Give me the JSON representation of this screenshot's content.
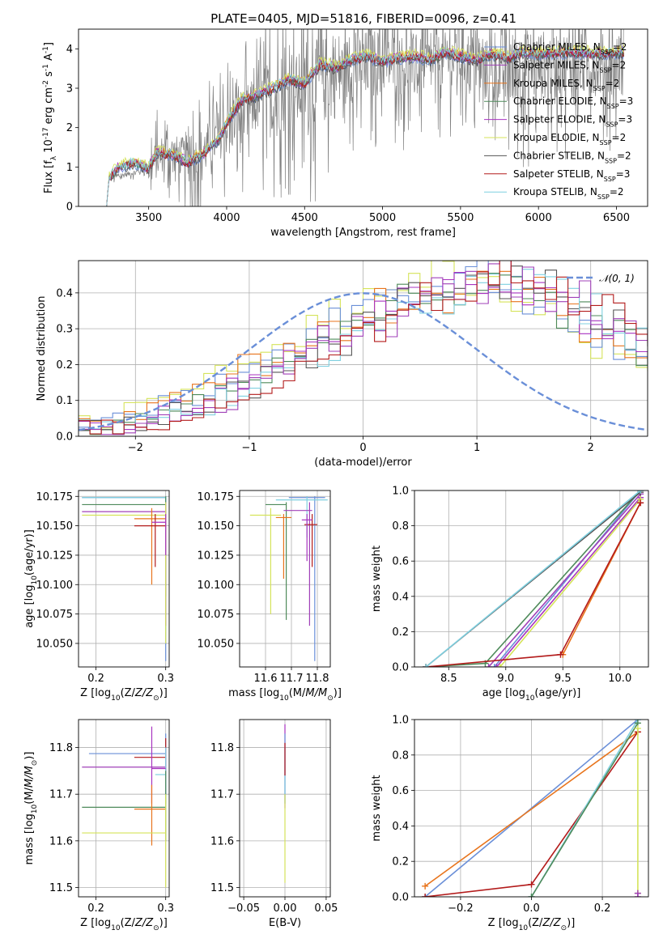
{
  "palette": {
    "Chabrier MILES": "#6a8fd8",
    "Salpeter MILES": "#a040b8",
    "Kroupa MILES": "#e8741c",
    "Chabrier ELODIE": "#4e8a5a",
    "Salpeter ELODIE": "#a833c0",
    "Kroupa ELODIE": "#d5e35a",
    "Chabrier STELIB": "#555555",
    "Salpeter STELIB": "#b31b1b",
    "Kroupa STELIB": "#7fd0e0",
    "data": "#808080",
    "normal": "#6a8fd8"
  },
  "chart_data": [
    {
      "id": "spectrum",
      "type": "line",
      "title": "PLATE=0405, MJD=51816, FIBERID=0096, z=0.41",
      "xlabel": "wavelength [Angstrom, rest frame]",
      "ylabel": "Flux [f_λ 10^-17 erg cm^-2 s^-1 A^-1]",
      "xlim": [
        3050,
        6700
      ],
      "ylim": [
        0,
        4.5
      ],
      "xticks": [
        3500,
        4000,
        4500,
        5000,
        5500,
        6000,
        6500
      ],
      "yticks": [
        0,
        1,
        2,
        3,
        4
      ],
      "grid": false,
      "legend": "top-right",
      "legend_entries": [
        {
          "name": "Chabrier MILES",
          "nssp": "2"
        },
        {
          "name": "Salpeter MILES",
          "nssp": "2"
        },
        {
          "name": "Kroupa MILES",
          "nssp": "2"
        },
        {
          "name": "Chabrier ELODIE",
          "nssp": "3"
        },
        {
          "name": "Salpeter ELODIE",
          "nssp": "3"
        },
        {
          "name": "Kroupa ELODIE",
          "nssp": "2"
        },
        {
          "name": "Chabrier STELIB",
          "nssp": "2"
        },
        {
          "name": "Salpeter STELIB",
          "nssp": "3"
        },
        {
          "name": "Kroupa STELIB",
          "nssp": "2"
        }
      ],
      "model_anchor_x": [
        3230,
        3245,
        3300,
        3400,
        3500,
        3550,
        3650,
        3750,
        3850,
        3950,
        4000,
        4100,
        4200,
        4300,
        4400,
        4500,
        4600,
        4700,
        4800,
        4900,
        5000,
        5100,
        5200,
        5300,
        5400,
        5500,
        5600,
        5700,
        5800,
        5900,
        6000,
        6200,
        6400,
        6550
      ],
      "model_anchor_y": [
        0.0,
        0.7,
        0.95,
        1.1,
        0.95,
        1.35,
        1.3,
        1.1,
        1.3,
        1.7,
        2.1,
        2.7,
        2.8,
        3.0,
        3.2,
        3.1,
        3.6,
        3.5,
        3.7,
        3.8,
        3.65,
        3.75,
        3.8,
        3.7,
        3.9,
        3.8,
        3.7,
        3.85,
        3.75,
        3.9,
        3.85,
        3.9,
        3.85,
        3.9
      ],
      "data_anchor_x": [
        3230,
        3245,
        3500,
        3600,
        3800,
        3950,
        4000,
        4200,
        4500,
        4800,
        5000,
        5200,
        5500,
        5700,
        6000,
        6550
      ],
      "data_anchor_y": [
        0.0,
        0.7,
        0.95,
        1.4,
        1.2,
        1.8,
        2.0,
        2.6,
        3.0,
        3.5,
        3.7,
        3.5,
        3.8,
        3.4,
        3.6,
        3.6
      ],
      "data_noise": [
        0.1,
        0.6,
        0.8,
        0.9,
        1.2,
        1.4,
        1.1,
        1.0,
        0.9,
        1.0,
        1.2,
        1.1,
        1.0,
        1.0
      ]
    },
    {
      "id": "residuals",
      "type": "histogram",
      "xlabel": "(data-model)/error",
      "ylabel": "Normed distribution",
      "xlim": [
        -2.5,
        2.5
      ],
      "ylim": [
        0,
        0.49
      ],
      "xticks": [
        -2,
        -1,
        0,
        1,
        2
      ],
      "yticks": [
        0.0,
        0.1,
        0.2,
        0.3,
        0.4
      ],
      "grid": true,
      "legend": "top-right",
      "normal_label": "𝒩(0, 1)",
      "bin_start": -2.5,
      "bin_width": 0.1,
      "envelope": [
        0.02,
        0.025,
        0.03,
        0.035,
        0.045,
        0.055,
        0.065,
        0.075,
        0.085,
        0.1,
        0.11,
        0.12,
        0.135,
        0.15,
        0.165,
        0.18,
        0.2,
        0.215,
        0.23,
        0.25,
        0.265,
        0.28,
        0.3,
        0.315,
        0.33,
        0.345,
        0.36,
        0.375,
        0.385,
        0.395,
        0.4,
        0.41,
        0.42,
        0.43,
        0.435,
        0.44,
        0.435,
        0.43,
        0.42,
        0.405,
        0.39,
        0.375,
        0.36,
        0.34,
        0.325,
        0.305,
        0.285,
        0.265,
        0.245,
        0.225,
        0.205,
        0.185,
        0.165,
        0.15,
        0.135,
        0.12,
        0.1,
        0.09,
        0.08,
        0.07,
        0.06,
        0.055,
        0.05,
        0.045,
        0.04,
        0.035,
        0.03,
        0.028,
        0.025,
        0.022,
        0.02
      ]
    },
    {
      "id": "age-vs-z",
      "type": "errorbar",
      "xlabel": "Z [log10(Z/Z⊙)]",
      "ylabel": "age  [log10(age/yr)]",
      "xlim": [
        0.175,
        0.305
      ],
      "ylim": [
        10.03,
        10.18
      ],
      "xticks": [
        0.2,
        0.3
      ],
      "yticks": [
        10.05,
        10.075,
        10.1,
        10.125,
        10.15,
        10.175
      ],
      "grid": true,
      "points": [
        {
          "s": "Chabrier MILES",
          "x": 0.3,
          "y": 10.174,
          "xl": 0.18,
          "xh": 0.3,
          "yl": 10.035,
          "yh": 10.175
        },
        {
          "s": "Kroupa STELIB",
          "x": 0.3,
          "y": 10.174,
          "xl": 0.18,
          "xh": 0.3,
          "yl": 10.06,
          "yh": 10.175
        },
        {
          "s": "Chabrier ELODIE",
          "x": 0.3,
          "y": 10.168,
          "xl": 0.18,
          "xh": 0.3,
          "yl": 10.09,
          "yh": 10.175
        },
        {
          "s": "Salpeter MILES",
          "x": 0.3,
          "y": 10.162,
          "xl": 0.18,
          "xh": 0.3,
          "yl": 10.065,
          "yh": 10.17
        },
        {
          "s": "Kroupa ELODIE",
          "x": 0.3,
          "y": 10.159,
          "xl": 0.18,
          "xh": 0.3,
          "yl": 10.05,
          "yh": 10.17
        },
        {
          "s": "Kroupa MILES",
          "x": 0.28,
          "y": 10.156,
          "xl": 0.255,
          "xh": 0.3,
          "yl": 10.1,
          "yh": 10.165
        },
        {
          "s": "Salpeter STELIB",
          "x": 0.285,
          "y": 10.15,
          "xl": 0.255,
          "xh": 0.3,
          "yl": 10.115,
          "yh": 10.16
        },
        {
          "s": "Salpeter ELODIE",
          "x": 0.3,
          "y": 10.153,
          "xl": 0.28,
          "xh": 0.3,
          "yl": 10.125,
          "yh": 10.16
        }
      ]
    },
    {
      "id": "age-vs-mass",
      "type": "errorbar",
      "xlabel": "mass [log10(M/M⊙)]",
      "ylabel": "",
      "xlim": [
        11.5,
        11.85
      ],
      "ylim": [
        10.03,
        10.18
      ],
      "xticks": [
        11.6,
        11.7,
        11.8
      ],
      "yticks": [
        10.05,
        10.075,
        10.1,
        10.125,
        10.15,
        10.175
      ],
      "grid": true,
      "points": [
        {
          "s": "Chabrier MILES",
          "x": 11.79,
          "y": 10.174,
          "xl": 11.69,
          "xh": 11.83,
          "yl": 10.035,
          "yh": 10.175
        },
        {
          "s": "Kroupa STELIB",
          "x": 11.76,
          "y": 10.172,
          "xl": 11.64,
          "xh": 11.84,
          "yl": 10.14,
          "yh": 10.175
        },
        {
          "s": "Chabrier ELODIE",
          "x": 11.68,
          "y": 10.168,
          "xl": 11.6,
          "xh": 11.68,
          "yl": 10.07,
          "yh": 10.17
        },
        {
          "s": "Salpeter MILES",
          "x": 11.77,
          "y": 10.163,
          "xl": 11.67,
          "xh": 11.78,
          "yl": 10.065,
          "yh": 10.17
        },
        {
          "s": "Kroupa ELODIE",
          "x": 11.62,
          "y": 10.159,
          "xl": 11.54,
          "xh": 11.66,
          "yl": 10.075,
          "yh": 10.165
        },
        {
          "s": "Kroupa MILES",
          "x": 11.67,
          "y": 10.157,
          "xl": 11.64,
          "xh": 11.7,
          "yl": 10.105,
          "yh": 10.16
        },
        {
          "s": "Salpeter STELIB",
          "x": 11.78,
          "y": 10.151,
          "xl": 11.75,
          "xh": 11.8,
          "yl": 10.115,
          "yh": 10.16
        },
        {
          "s": "Salpeter ELODIE",
          "x": 11.76,
          "y": 10.155,
          "xl": 11.74,
          "xh": 11.78,
          "yl": 10.12,
          "yh": 10.16
        }
      ]
    },
    {
      "id": "mw-vs-age",
      "type": "line",
      "xlabel": "age  [log10(age/yr)]",
      "ylabel": "mass weight",
      "xlim": [
        8.2,
        10.25
      ],
      "ylim": [
        0,
        1
      ],
      "xticks": [
        8.5,
        9.0,
        9.5,
        10.0
      ],
      "yticks": [
        0.0,
        0.2,
        0.4,
        0.6,
        0.8,
        1.0
      ],
      "grid": true,
      "series": [
        {
          "s": "Chabrier MILES",
          "x": [
            8.9,
            10.18
          ],
          "y": [
            0.0,
            1.0
          ]
        },
        {
          "s": "Salpeter MILES",
          "x": [
            8.85,
            10.18
          ],
          "y": [
            0.0,
            0.98
          ]
        },
        {
          "s": "Kroupa MILES",
          "x": [
            9.5,
            10.18
          ],
          "y": [
            0.07,
            0.93
          ]
        },
        {
          "s": "Chabrier ELODIE",
          "x": [
            8.3,
            8.82,
            10.18
          ],
          "y": [
            0.0,
            0.02,
            1.0
          ]
        },
        {
          "s": "Salpeter ELODIE",
          "x": [
            8.92,
            10.18
          ],
          "y": [
            0.0,
            0.96
          ]
        },
        {
          "s": "Kroupa ELODIE",
          "x": [
            8.95,
            10.18
          ],
          "y": [
            0.0,
            0.95
          ]
        },
        {
          "s": "Chabrier STELIB",
          "x": [
            8.3,
            10.18
          ],
          "y": [
            0.0,
            0.99
          ]
        },
        {
          "s": "Salpeter STELIB",
          "x": [
            8.3,
            9.48,
            10.18
          ],
          "y": [
            0.0,
            0.07,
            0.93
          ]
        },
        {
          "s": "Kroupa STELIB",
          "x": [
            8.3,
            10.18
          ],
          "y": [
            0.0,
            1.0
          ]
        }
      ]
    },
    {
      "id": "mass-vs-z",
      "type": "errorbar",
      "xlabel": "Z [log10(Z/Z⊙)]",
      "ylabel": "mass [log10(M/M⊙)]",
      "xlim": [
        0.175,
        0.305
      ],
      "ylim": [
        11.48,
        11.86
      ],
      "xticks": [
        0.2,
        0.3
      ],
      "yticks": [
        11.5,
        11.6,
        11.7,
        11.8
      ],
      "grid": true,
      "points": [
        {
          "s": "Chabrier MILES",
          "x": 0.3,
          "y": 11.787,
          "xl": 0.19,
          "xh": 0.3,
          "yl": 11.68,
          "yh": 11.83
        },
        {
          "s": "Salpeter STELIB",
          "x": 0.3,
          "y": 11.779,
          "xl": 0.255,
          "xh": 0.3,
          "yl": 11.74,
          "yh": 11.82
        },
        {
          "s": "Salpeter MILES",
          "x": 0.3,
          "y": 11.758,
          "xl": 0.18,
          "xh": 0.3,
          "yl": 11.7,
          "yh": 11.8
        },
        {
          "s": "Kroupa STELIB",
          "x": 0.3,
          "y": 11.742,
          "xl": 0.285,
          "xh": 0.3,
          "yl": 11.68,
          "yh": 11.8
        },
        {
          "s": "Salpeter ELODIE",
          "x": 0.28,
          "y": 11.755,
          "xl": 0.28,
          "xh": 0.3,
          "yl": 11.68,
          "yh": 11.845
        },
        {
          "s": "Chabrier ELODIE",
          "x": 0.3,
          "y": 11.672,
          "xl": 0.18,
          "xh": 0.3,
          "yl": 11.6,
          "yh": 11.75
        },
        {
          "s": "Kroupa MILES",
          "x": 0.28,
          "y": 11.668,
          "xl": 0.255,
          "xh": 0.3,
          "yl": 11.59,
          "yh": 11.72
        },
        {
          "s": "Kroupa ELODIE",
          "x": 0.3,
          "y": 11.617,
          "xl": 0.18,
          "xh": 0.3,
          "yl": 11.5,
          "yh": 11.7
        }
      ]
    },
    {
      "id": "mass-vs-ebv",
      "type": "errorbar",
      "xlabel": "E(B-V)",
      "ylabel": "",
      "xlim": [
        -0.055,
        0.055
      ],
      "ylim": [
        11.48,
        11.86
      ],
      "xticks": [
        -0.05,
        0.0,
        0.05
      ],
      "tick_labels": [
        "−0.05",
        "0.00",
        "0.05"
      ],
      "yticks": [
        11.5,
        11.6,
        11.7,
        11.8
      ],
      "grid": true,
      "points": [
        {
          "s": "Salpeter ELODIE",
          "x": 0.0,
          "y": 11.76,
          "xl": 0.0,
          "xh": 0.0,
          "yl": 11.67,
          "yh": 11.85
        },
        {
          "s": "Chabrier MILES",
          "x": 0.0,
          "y": 11.79,
          "xl": 0.0,
          "xh": 0.0,
          "yl": 11.68,
          "yh": 11.83
        },
        {
          "s": "Kroupa STELIB",
          "x": 0.0,
          "y": 11.74,
          "xl": 0.0,
          "xh": 0.0,
          "yl": 11.68,
          "yh": 11.8
        },
        {
          "s": "Salpeter STELIB",
          "x": 0.0,
          "y": 11.78,
          "xl": 0.0,
          "xh": 0.0,
          "yl": 11.74,
          "yh": 11.81
        },
        {
          "s": "Kroupa ELODIE",
          "x": 0.0,
          "y": 11.62,
          "xl": 0.0,
          "xh": 0.0,
          "yl": 11.51,
          "yh": 11.7
        }
      ]
    },
    {
      "id": "mw-vs-z",
      "type": "line",
      "xlabel": "Z [log10(Z/Z⊙)]",
      "ylabel": "mass weight",
      "xlim": [
        -0.33,
        0.33
      ],
      "ylim": [
        0,
        1
      ],
      "xticks": [
        -0.2,
        0.0,
        0.2
      ],
      "tick_labels": [
        "−0.2",
        "0.0",
        "0.2"
      ],
      "yticks": [
        0.0,
        0.2,
        0.4,
        0.6,
        0.8,
        1.0
      ],
      "grid": true,
      "series": [
        {
          "s": "Chabrier MILES",
          "x": [
            -0.3,
            0.3
          ],
          "y": [
            0.0,
            1.0
          ]
        },
        {
          "s": "Kroupa MILES",
          "x": [
            -0.3,
            0.3
          ],
          "y": [
            0.06,
            0.93
          ]
        },
        {
          "s": "Salpeter STELIB",
          "x": [
            -0.3,
            0.0,
            0.3
          ],
          "y": [
            0.0,
            0.07,
            0.93
          ]
        },
        {
          "s": "Kroupa STELIB",
          "x": [
            0.0,
            0.3
          ],
          "y": [
            0.0,
            1.0
          ]
        },
        {
          "s": "Chabrier ELODIE",
          "x": [
            0.0,
            0.3
          ],
          "y": [
            0.0,
            0.98
          ]
        },
        {
          "s": "Kroupa ELODIE",
          "x": [
            0.3,
            0.3
          ],
          "y": [
            0.02,
            0.95
          ]
        },
        {
          "s": "Salpeter MILES",
          "x": [
            0.3,
            0.3
          ],
          "y": [
            0.0,
            0.02
          ]
        }
      ]
    }
  ]
}
